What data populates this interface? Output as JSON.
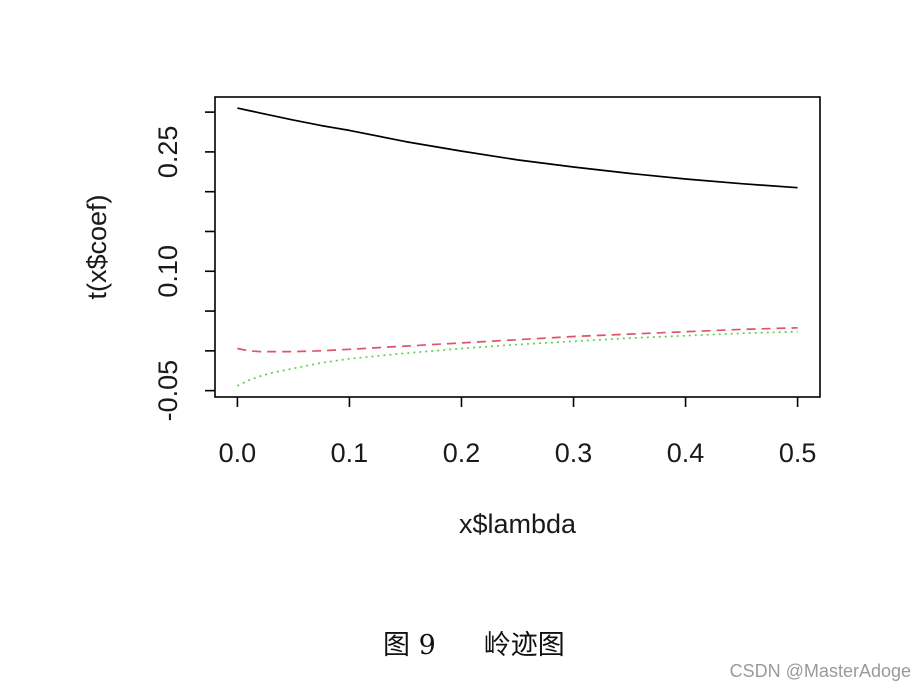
{
  "chart_data": {
    "type": "line",
    "xlabel": "x$lambda",
    "ylabel": "t(x$coef)",
    "xlim": [
      -0.02,
      0.52
    ],
    "ylim": [
      -0.058,
      0.319
    ],
    "grid": false,
    "xticks": [
      0,
      0.1,
      0.2,
      0.3,
      0.4,
      0.5
    ],
    "xtick_labels": [
      "0.0",
      "0.1",
      "0.2",
      "0.3",
      "0.4",
      "0.5"
    ],
    "yticks": [
      -0.05,
      0.0,
      0.05,
      0.1,
      0.15,
      0.2,
      0.25,
      0.3
    ],
    "ytick_labels": [
      "-0.05",
      "",
      "",
      "0.10",
      "",
      "",
      "0.25",
      ""
    ],
    "x": [
      0,
      0.01,
      0.02,
      0.03,
      0.05,
      0.075,
      0.1,
      0.15,
      0.2,
      0.25,
      0.3,
      0.35,
      0.4,
      0.45,
      0.5
    ],
    "series": [
      {
        "color": "#000000",
        "line_style": "solid",
        "values": [
          0.305,
          0.302,
          0.299,
          0.296,
          0.29,
          0.283,
          0.277,
          0.263,
          0.251,
          0.24,
          0.231,
          0.223,
          0.216,
          0.21,
          0.205
        ]
      },
      {
        "color": "#DF536B",
        "line_style": "dashed",
        "values": [
          0.003,
          0.0,
          -0.001,
          -0.001,
          -0.001,
          0.0,
          0.002,
          0.006,
          0.01,
          0.014,
          0.018,
          0.021,
          0.024,
          0.027,
          0.029
        ]
      },
      {
        "color": "#61D04F",
        "line_style": "dotted",
        "values": [
          -0.044,
          -0.037,
          -0.032,
          -0.028,
          -0.022,
          -0.015,
          -0.01,
          -0.003,
          0.003,
          0.008,
          0.012,
          0.016,
          0.019,
          0.022,
          0.024
        ]
      }
    ]
  },
  "caption": {
    "label": "图 9",
    "title": "岭迹图"
  },
  "watermark": "CSDN @MasterAdoge"
}
